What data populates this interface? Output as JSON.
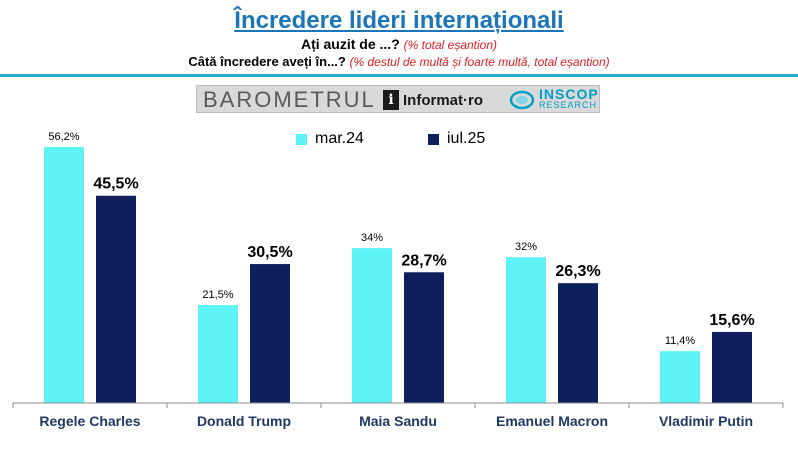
{
  "header": {
    "title": "Încredere lideri internaționali",
    "subtitle1_main": "Ați auzit de ...?",
    "subtitle1_note": "(% total eșantion)",
    "subtitle2_main": "Câtă încredere aveți în...?",
    "subtitle2_note": "(% destul de multă și foarte multă, total eșantion)"
  },
  "banner": {
    "barometer": "BAROMETRUL",
    "info_letter": "i",
    "info_name": "Informat",
    "info_tld": "ro",
    "inscop_name": "INSCOP",
    "inscop_sub": "RESEARCH"
  },
  "colors": {
    "accent": "#1b75bb",
    "note": "#e31e24",
    "rule": "#29abe2",
    "series1": "#5ef3f6",
    "series2": "#0d1f5c"
  },
  "chart_data": {
    "type": "bar",
    "categories": [
      "Regele Charles",
      "Donald Trump",
      "Maia Sandu",
      "Emanuel Macron",
      "Vladimir Putin"
    ],
    "series": [
      {
        "name": "mar.24",
        "values": [
          56.2,
          21.5,
          34,
          32,
          11.4
        ],
        "labels": [
          "56,2%",
          "21,5%",
          "34%",
          "32%",
          "11,4%"
        ],
        "color": "#5ef3f6"
      },
      {
        "name": "iul.25",
        "values": [
          45.5,
          30.5,
          28.7,
          26.3,
          15.6
        ],
        "labels": [
          "45,5%",
          "30,5%",
          "28,7%",
          "26,3%",
          "15,6%"
        ],
        "color": "#0d1f5c"
      }
    ],
    "ylim": [
      0,
      56.2
    ],
    "grid": false,
    "legend": "top-center"
  }
}
